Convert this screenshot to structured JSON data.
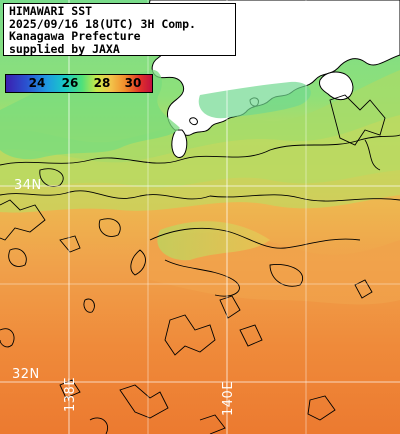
{
  "header": {
    "line1": "HIMAWARI SST",
    "line2": "2025/09/16 18(UTC) 3H Comp.",
    "line3": "Kanagawa Prefecture",
    "line4": "supplied by JAXA"
  },
  "legend": {
    "ticks": [
      "24",
      "26",
      "28",
      "30"
    ],
    "colors": [
      "#3b1fb0",
      "#1f7ddc",
      "#19c8c8",
      "#4fe07a",
      "#c8e84a",
      "#f3c24a",
      "#f08a2a",
      "#e0302a",
      "#c01040"
    ]
  },
  "grid_labels": {
    "lat_34": "34N",
    "lat_32": "32N",
    "lon_138": "138E",
    "lon_140": "140E"
  },
  "colors": {
    "land": "#ffffff",
    "cold_water": "#7ee07a",
    "mid_water": "#c8d860",
    "warm_water": "#f0a050",
    "hot_water": "#ee7a30",
    "grid": "#ffffff",
    "contour": "#000000"
  }
}
